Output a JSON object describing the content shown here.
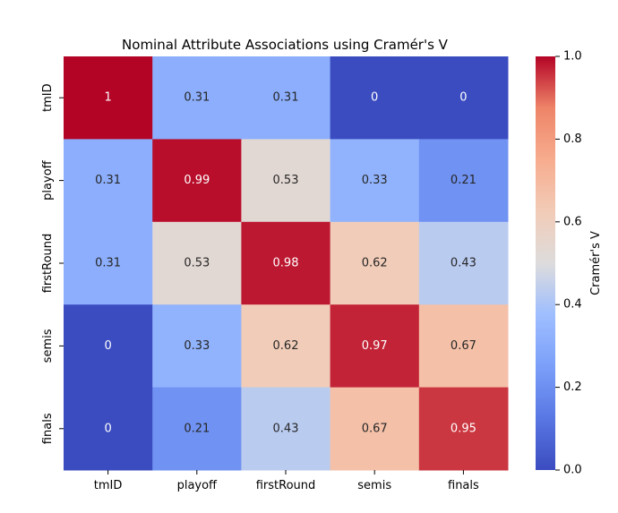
{
  "chart_data": {
    "type": "heatmap",
    "title": "Nominal Attribute Associations using Cramér's V",
    "x_labels": [
      "tmID",
      "playoff",
      "firstRound",
      "semis",
      "finals"
    ],
    "y_labels": [
      "tmID",
      "playoff",
      "firstRound",
      "semis",
      "finals"
    ],
    "values": [
      [
        1,
        0.31,
        0.31,
        0,
        0
      ],
      [
        0.31,
        0.99,
        0.53,
        0.33,
        0.21
      ],
      [
        0.31,
        0.53,
        0.98,
        0.62,
        0.43
      ],
      [
        0,
        0.33,
        0.62,
        0.97,
        0.67
      ],
      [
        0,
        0.21,
        0.43,
        0.67,
        0.95
      ]
    ],
    "colorbar": {
      "label": "Cramér's V",
      "min": 0,
      "max": 1,
      "ticks": [
        "0.0",
        "0.2",
        "0.4",
        "0.6",
        "0.8",
        "1.0"
      ],
      "colormap": "coolwarm"
    }
  }
}
